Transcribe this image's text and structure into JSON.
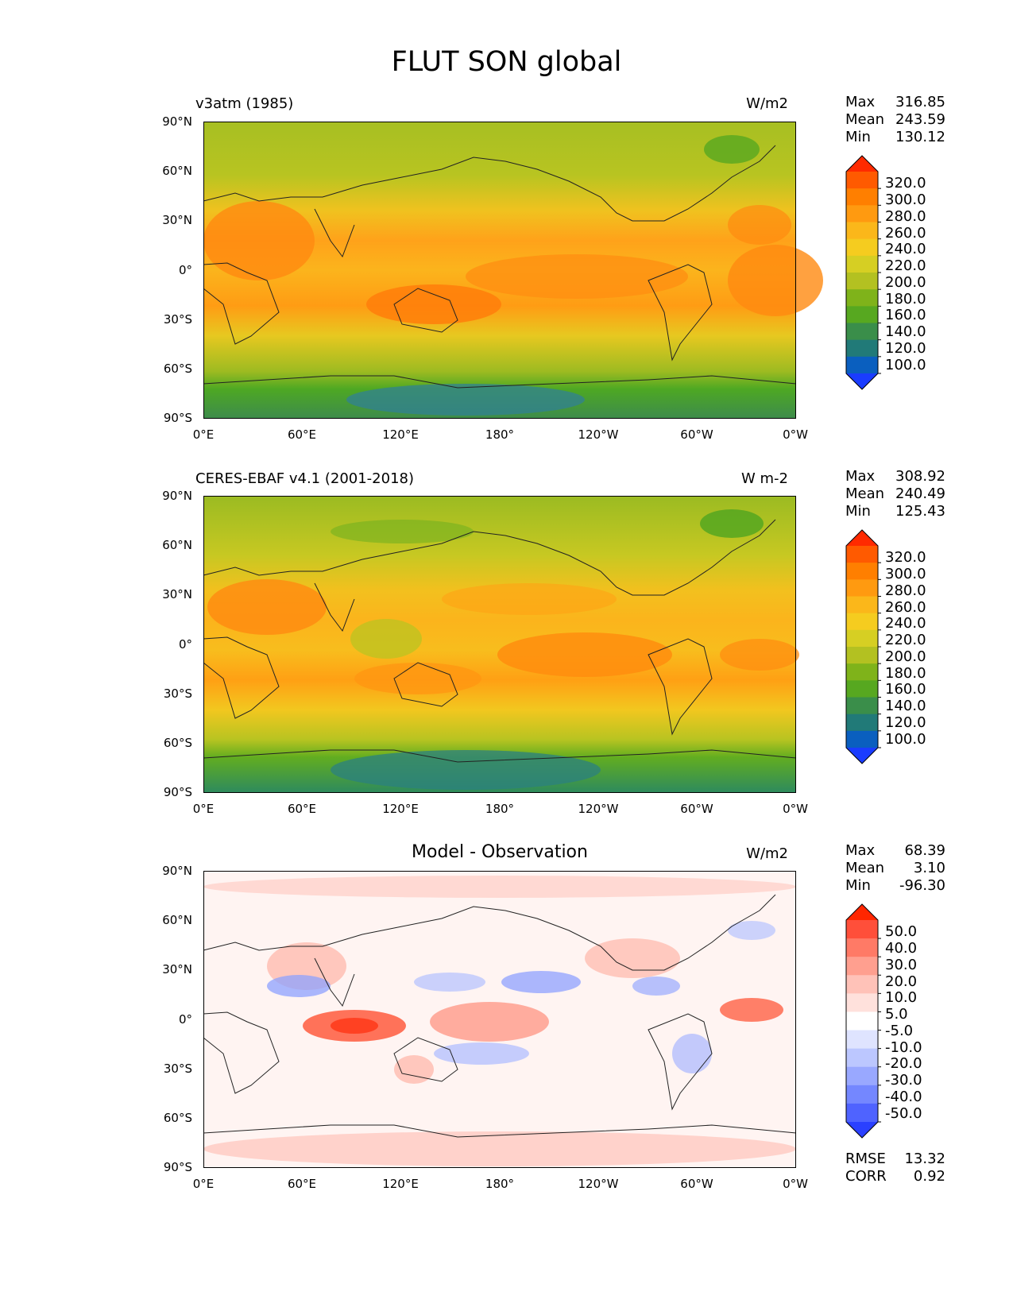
{
  "title": "FLUT SON global",
  "lat_ticks": [
    "90°N",
    "60°N",
    "30°N",
    "0°",
    "30°S",
    "60°S",
    "90°S"
  ],
  "lon_ticks": [
    "0°E",
    "60°E",
    "120°E",
    "180°",
    "120°W",
    "60°W",
    "0°W"
  ],
  "panels": [
    {
      "left_title": "v3atm (1985)",
      "center_title": "",
      "units": "W/m2",
      "stats": {
        "max_label": "Max",
        "max": "316.85",
        "mean_label": "Mean",
        "mean": "243.59",
        "min_label": "Min",
        "min": "130.12"
      },
      "colorbar_levels": [
        "320.0",
        "300.0",
        "280.0",
        "260.0",
        "240.0",
        "220.0",
        "200.0",
        "180.0",
        "160.0",
        "140.0",
        "120.0",
        "100.0"
      ]
    },
    {
      "left_title": "CERES-EBAF v4.1 (2001-2018)",
      "center_title": "",
      "units": "W m-2",
      "stats": {
        "max_label": "Max",
        "max": "308.92",
        "mean_label": "Mean",
        "mean": "240.49",
        "min_label": "Min",
        "min": "125.43"
      },
      "colorbar_levels": [
        "320.0",
        "300.0",
        "280.0",
        "260.0",
        "240.0",
        "220.0",
        "200.0",
        "180.0",
        "160.0",
        "140.0",
        "120.0",
        "100.0"
      ]
    },
    {
      "left_title": "",
      "center_title": "Model - Observation",
      "units": "W/m2",
      "stats": {
        "max_label": "Max",
        "max": "68.39",
        "mean_label": "Mean",
        "mean": "3.10",
        "min_label": "Min",
        "min": "-96.30"
      },
      "colorbar_levels": [
        "50.0",
        "40.0",
        "30.0",
        "20.0",
        "10.0",
        "5.0",
        "-5.0",
        "-10.0",
        "-20.0",
        "-30.0",
        "-40.0",
        "-50.0"
      ],
      "rmse_label": "RMSE",
      "rmse": "13.32",
      "corr_label": "CORR",
      "corr": "0.92"
    }
  ],
  "colors": {
    "abs_scale": [
      "#ff2a00",
      "#ff5a00",
      "#ff7f00",
      "#ff9a10",
      "#fbb71a",
      "#f5cc1f",
      "#d6cf23",
      "#b3c121",
      "#7fb31a",
      "#57a820",
      "#3a8e4a",
      "#217a78",
      "#0a5fbf",
      "#1a3cff"
    ],
    "diff_scale": [
      "#ff2600",
      "#ff4f3a",
      "#ff7a66",
      "#ff9f8f",
      "#ffc2b8",
      "#ffe1dc",
      "#ffffff",
      "#dfe4ff",
      "#bcc7ff",
      "#99a8ff",
      "#7487ff",
      "#4f63ff",
      "#2a40ff"
    ]
  }
}
